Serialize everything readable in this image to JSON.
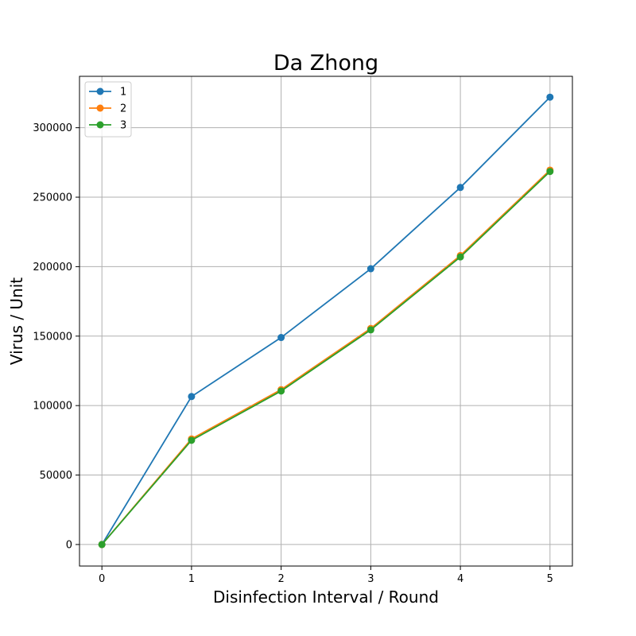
{
  "chart_data": {
    "type": "line",
    "title": "Da Zhong",
    "xlabel": "Disinfection Interval / Round",
    "ylabel": "Virus / Unit",
    "x": [
      0,
      1,
      2,
      3,
      4,
      5
    ],
    "xticks": [
      0,
      1,
      2,
      3,
      4,
      5
    ],
    "xlim": [
      -0.25,
      5.25
    ],
    "yticks": [
      0,
      50000,
      100000,
      150000,
      200000,
      250000,
      300000
    ],
    "ylim": [
      -15500,
      337000
    ],
    "grid": true,
    "legend_position": "upper-left",
    "series": [
      {
        "name": "1",
        "color": "#1f77b4",
        "values": [
          0,
          106500,
          149000,
          198500,
          257000,
          322000
        ]
      },
      {
        "name": "2",
        "color": "#ff7f0e",
        "values": [
          0,
          76000,
          111500,
          155500,
          208000,
          269500
        ]
      },
      {
        "name": "3",
        "color": "#2ca02c",
        "values": [
          0,
          75000,
          110500,
          154500,
          207000,
          268500
        ]
      }
    ]
  }
}
